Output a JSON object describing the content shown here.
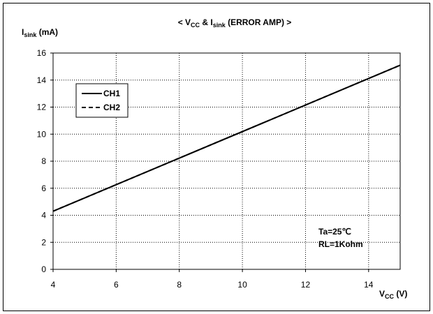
{
  "chart_data": {
    "type": "line",
    "title": {
      "prefix": "< V",
      "sub1": "CC",
      "mid": " & I",
      "sub2": "sink",
      "suffix": " (ERROR AMP) >"
    },
    "ylabel": {
      "main": "I",
      "sub": "sink",
      "unit": " (mA)"
    },
    "xlabel": {
      "main": "V",
      "sub": "CC",
      "unit": " (V)"
    },
    "xlim": [
      4,
      15
    ],
    "ylim": [
      0,
      16
    ],
    "x_ticks": [
      "4",
      "6",
      "8",
      "10",
      "12",
      "14"
    ],
    "y_ticks": [
      "0",
      "2",
      "4",
      "6",
      "8",
      "10",
      "12",
      "14",
      "16"
    ],
    "grid": true,
    "legend_position": "top-left",
    "series": [
      {
        "name": "CH1",
        "style": "solid",
        "x": [
          4,
          15
        ],
        "y": [
          4.3,
          15.1
        ]
      },
      {
        "name": "CH2",
        "style": "dashed",
        "x": [
          4,
          15
        ],
        "y": [
          4.3,
          15.1
        ]
      }
    ],
    "annotations": [
      "Ta=25℃",
      "RL=1Kohm"
    ]
  },
  "colors": {
    "line": "#000000",
    "grid": "#000000",
    "background": "#ffffff"
  }
}
